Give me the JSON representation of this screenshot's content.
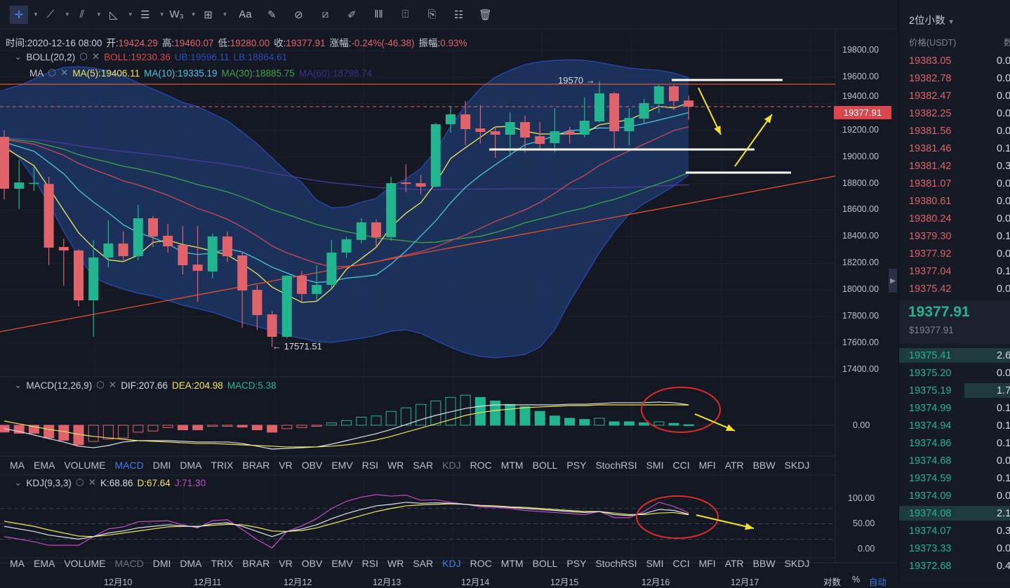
{
  "toolbar": {
    "items": [
      {
        "name": "crosshair-tool",
        "glyph": "✛",
        "dd": true
      },
      {
        "name": "trendline-tool",
        "glyph": "⟋",
        "dd": true
      },
      {
        "name": "parallel-channel-tool",
        "glyph": "⫽",
        "dd": true
      },
      {
        "name": "angle-tool",
        "glyph": "◺",
        "dd": true
      },
      {
        "name": "horizontal-lines-tool",
        "glyph": "☰",
        "dd": true
      },
      {
        "name": "wave-tool",
        "glyph": "W₃",
        "dd": true
      },
      {
        "name": "rectangle-tool",
        "glyph": "⊞",
        "dd": true
      },
      {
        "name": "text-tool",
        "glyph": "Aa",
        "dd": false
      },
      {
        "name": "measure-tool",
        "glyph": "✎",
        "dd": false
      },
      {
        "name": "magnet-tool",
        "glyph": "⊘",
        "dd": false
      },
      {
        "name": "ruler-tool",
        "glyph": "⧄",
        "dd": false
      },
      {
        "name": "brush-tool",
        "glyph": "✐",
        "dd": false
      },
      {
        "name": "candles-tool",
        "glyph": "ǁǁ",
        "dd": false
      },
      {
        "name": "lock-tool",
        "glyph": "⍐",
        "dd": false
      },
      {
        "name": "bookmark-tool",
        "glyph": "⎘",
        "dd": false
      },
      {
        "name": "notes-tool",
        "glyph": "☷",
        "dd": false
      },
      {
        "name": "trash-tool",
        "glyph": "🗑",
        "dd": false
      }
    ]
  },
  "info": {
    "time_label": "时间:",
    "time": "2020-12-16 08:00",
    "open_label": "开:",
    "open": "19424.29",
    "high_label": "高:",
    "high": "19460.07",
    "low_label": "低:",
    "low": "19280.00",
    "close_label": "收:",
    "close": "19377.91",
    "change_label": "涨幅:",
    "change": "-0.24%(-46.38)",
    "amp_label": "振幅:",
    "amp": "0.93%"
  },
  "boll": {
    "name": "BOLL(20,2)",
    "mid": "BOLL:19230.36",
    "ub": "UB:19596.11",
    "lb": "LB:18864.61"
  },
  "ma": {
    "name": "MA",
    "ma5": "MA(5):19406.11",
    "ma10": "MA(10):19335.19",
    "ma30": "MA(30):18885.75",
    "ma60": "MA(60):18798.74"
  },
  "macd": {
    "name": "MACD(12,26,9)",
    "dif": "DIF:207.66",
    "dea": "DEA:204.98",
    "macd": "MACD:5.38",
    "zero": "0.00"
  },
  "kdj": {
    "name": "KDJ(9,3,3)",
    "k": "K:68.86",
    "d": "D:67.64",
    "j": "J:71.30",
    "ticks": [
      "100.00",
      "50.00",
      "0.00"
    ]
  },
  "indicator_tabs": [
    "MA",
    "EMA",
    "VOLUME",
    "MACD",
    "DMI",
    "DMA",
    "TRIX",
    "BRAR",
    "VR",
    "OBV",
    "EMV",
    "RSI",
    "WR",
    "SAR",
    "KDJ",
    "ROC",
    "MTM",
    "BOLL",
    "PSY",
    "StochRSI",
    "SMI",
    "CCI",
    "MFI",
    "ATR",
    "BBW",
    "SKDJ"
  ],
  "price_axis": [
    "19800.00",
    "19600.00",
    "19400.00",
    "19200.00",
    "19000.00",
    "18800.00",
    "18600.00",
    "18400.00",
    "18200.00",
    "18000.00",
    "17800.00",
    "17600.00",
    "17400.00"
  ],
  "current_price": "19377.91",
  "annotations": {
    "high": "19570 →",
    "low": "← 17571.51"
  },
  "date_axis": [
    "12月10",
    "12月11",
    "12月12",
    "12月13",
    "12月14",
    "12月15",
    "12月16",
    "12月17"
  ],
  "axis_controls": {
    "log": "对数",
    "percent": "%",
    "auto": "自动"
  },
  "colors": {
    "up": "#22b48e",
    "down": "#e0626b",
    "ma5": "#f2e55c",
    "ma10": "#4cc3dc",
    "ma30": "#3ea14c",
    "ma60": "#4b3a9a",
    "boll": "#c9465e",
    "band": "#2a4bb8",
    "accent": "#3d7ee6"
  },
  "orderbook": {
    "decimals": "2位小数",
    "price_header": "价格(USDT)",
    "qty_header": "数",
    "asks": [
      [
        "19383.05",
        "0.0"
      ],
      [
        "19382.78",
        "0.0"
      ],
      [
        "19382.47",
        "0.0"
      ],
      [
        "19382.25",
        "0.0"
      ],
      [
        "19381.56",
        "0.0"
      ],
      [
        "19381.46",
        "0.1"
      ],
      [
        "19381.42",
        "0.3"
      ],
      [
        "19381.07",
        "0.0"
      ],
      [
        "19380.61",
        "0.0"
      ],
      [
        "19380.24",
        "0.0"
      ],
      [
        "19379.30",
        "0.1"
      ],
      [
        "19377.92",
        "0.0"
      ],
      [
        "19377.04",
        "0.1"
      ],
      [
        "19375.42",
        "0.0"
      ]
    ],
    "last": "19377.91",
    "last_usd": "$19377.91",
    "bids": [
      [
        "19375.41",
        "2.6"
      ],
      [
        "19375.20",
        "0.0"
      ],
      [
        "19375.19",
        "1.7"
      ],
      [
        "19374.99",
        "0.1"
      ],
      [
        "19374.94",
        "0.1"
      ],
      [
        "19374.86",
        "0.1"
      ],
      [
        "19374.68",
        "0.0"
      ],
      [
        "19374.59",
        "0.1"
      ],
      [
        "19374.09",
        "0.0"
      ],
      [
        "19374.08",
        "2.1"
      ],
      [
        "19374.07",
        "0.3"
      ],
      [
        "19373.33",
        "0.0"
      ],
      [
        "19372.68",
        "0.4"
      ]
    ]
  },
  "chart_data": {
    "type": "candlestick",
    "symbol_quote": "USDT",
    "ylim": [
      17400,
      19800
    ],
    "ohlc": [
      [
        19151,
        19200,
        18680,
        18761
      ],
      [
        18761,
        18977,
        18608,
        18808
      ],
      [
        18800,
        18925,
        18745,
        18805
      ],
      [
        18797,
        18850,
        18186,
        18318
      ],
      [
        18323,
        18386,
        18033,
        18297
      ],
      [
        18297,
        18307,
        17875,
        17922
      ],
      [
        17922,
        18376,
        17648,
        18244
      ],
      [
        18244,
        18524,
        18170,
        18349
      ],
      [
        18349,
        18439,
        18212,
        18254
      ],
      [
        18254,
        18640,
        18223,
        18539
      ],
      [
        18539,
        18555,
        18323,
        18402
      ],
      [
        18408,
        18497,
        18281,
        18328
      ],
      [
        18339,
        18481,
        18117,
        18186
      ],
      [
        18191,
        18481,
        17912,
        18144
      ],
      [
        18139,
        18423,
        18086,
        18402
      ],
      [
        18402,
        18439,
        18212,
        18254
      ],
      [
        18260,
        18290,
        17716,
        17996
      ],
      [
        18001,
        18038,
        17701,
        17811
      ],
      [
        17816,
        17840,
        17571.51,
        17648
      ],
      [
        17648,
        18112,
        17638,
        18107
      ],
      [
        18107,
        18143,
        17912,
        17970
      ],
      [
        17970,
        18186,
        17917,
        18038
      ],
      [
        18038,
        18376,
        18010,
        18281
      ],
      [
        18281,
        18400,
        18240,
        18381
      ],
      [
        18376,
        18540,
        18350,
        18508
      ],
      [
        18508,
        18530,
        18323,
        18397
      ],
      [
        18397,
        18850,
        18370,
        18803
      ],
      [
        18808,
        18945,
        18735,
        18797
      ],
      [
        18803,
        18866,
        18719,
        18777
      ],
      [
        18777,
        19256,
        18770,
        19246
      ],
      [
        19246,
        19383,
        19183,
        19320
      ],
      [
        19320,
        19420,
        19088,
        19209
      ],
      [
        19214,
        19390,
        19100,
        19188
      ],
      [
        19193,
        19230,
        18993,
        19167
      ],
      [
        19167,
        19336,
        19004,
        19262
      ],
      [
        19262,
        19310,
        19035,
        19146
      ],
      [
        19156,
        19262,
        19061,
        19098
      ],
      [
        19104,
        19367,
        19035,
        19193
      ],
      [
        19193,
        19225,
        19100,
        19167
      ],
      [
        19167,
        19447,
        19146,
        19272
      ],
      [
        19267,
        19570,
        19260,
        19478
      ],
      [
        19478,
        19488,
        19061,
        19193
      ],
      [
        19193,
        19367,
        19088,
        19293
      ],
      [
        19288,
        19436,
        19246,
        19404
      ],
      [
        19399,
        19546,
        19330,
        19531
      ],
      [
        19531,
        19541,
        19351,
        19420
      ],
      [
        19424.29,
        19460.07,
        19280,
        19377.91
      ]
    ],
    "boll_upper": [
      19505,
      19536,
      19584,
      19636,
      19673,
      19679,
      19668,
      19647,
      19610,
      19557,
      19510,
      19462,
      19410,
      19378,
      19325,
      19272,
      19188,
      19098,
      18993,
      18887,
      18808,
      18676,
      18618,
      18624,
      18661,
      18687,
      18782,
      18834,
      18914,
      19046,
      19230,
      19389,
      19515,
      19600,
      19652,
      19694,
      19716,
      19726,
      19731,
      19726,
      19710,
      19689,
      19668,
      19658,
      19652,
      19631,
      19596.11
    ],
    "boll_lower": [
      19098,
      18993,
      18835,
      18650,
      18439,
      18254,
      18096,
      18043,
      18007,
      17975,
      17954,
      17922,
      17885,
      17859,
      17832,
      17795,
      17753,
      17727,
      17690,
      17658,
      17637,
      17611,
      17606,
      17621,
      17637,
      17658,
      17690,
      17701,
      17674,
      17621,
      17569,
      17526,
      17500,
      17490,
      17500,
      17516,
      17569,
      17701,
      17912,
      18096,
      18281,
      18439,
      18571,
      18650,
      18713,
      18782,
      18864.61
    ],
    "macd_dif": [
      -35,
      -64,
      -99,
      -136,
      -171,
      -214,
      -229,
      -207,
      -171,
      -157,
      -157,
      -157,
      -164,
      -171,
      -171,
      -171,
      -186,
      -214,
      -243,
      -236,
      -229,
      -221,
      -193,
      -157,
      -121,
      -86,
      -43,
      7,
      57,
      100,
      136,
      171,
      193,
      207,
      207,
      207,
      207,
      207,
      214,
      214,
      221,
      229,
      229,
      229,
      236,
      229,
      207.66
    ],
    "macd_dea": [
      43,
      14,
      -14,
      -43,
      -64,
      -93,
      -114,
      -129,
      -143,
      -157,
      -164,
      -171,
      -179,
      -186,
      -186,
      -193,
      -200,
      -207,
      -214,
      -221,
      -221,
      -221,
      -214,
      -200,
      -179,
      -150,
      -114,
      -71,
      -29,
      14,
      57,
      100,
      129,
      150,
      164,
      179,
      186,
      193,
      200,
      200,
      207,
      207,
      207,
      207,
      207,
      207,
      204.98
    ],
    "macd_hist": [
      -70,
      -82,
      -82,
      -130,
      -153,
      -200,
      -165,
      -141,
      -130,
      -71,
      -59,
      -24,
      -47,
      -47,
      -12,
      -7,
      -19,
      -47,
      -71,
      -35,
      -24,
      -7,
      24,
      47,
      82,
      94,
      141,
      177,
      212,
      247,
      283,
      306,
      283,
      247,
      212,
      189,
      141,
      94,
      71,
      59,
      71,
      35,
      35,
      24,
      35,
      19,
      5.38
    ],
    "kdj_k": [
      45,
      40,
      35,
      28,
      24,
      20,
      25,
      32,
      36,
      42,
      45,
      48,
      46,
      44,
      50,
      52,
      45,
      35,
      25,
      35,
      40,
      48,
      60,
      70,
      78,
      85,
      88,
      92,
      90,
      91,
      90,
      88,
      85,
      84,
      82,
      80,
      78,
      76,
      74,
      72,
      74,
      68,
      66,
      70,
      78,
      76,
      68.86
    ],
    "kdj_d": [
      55,
      50,
      45,
      38,
      32,
      26,
      25,
      28,
      32,
      36,
      40,
      44,
      45,
      45,
      47,
      49,
      48,
      43,
      36,
      35,
      37,
      42,
      50,
      58,
      66,
      74,
      80,
      85,
      87,
      88,
      89,
      88,
      86,
      85,
      83,
      82,
      80,
      78,
      76,
      74,
      74,
      71,
      68,
      68,
      71,
      72,
      67.64
    ]
  }
}
